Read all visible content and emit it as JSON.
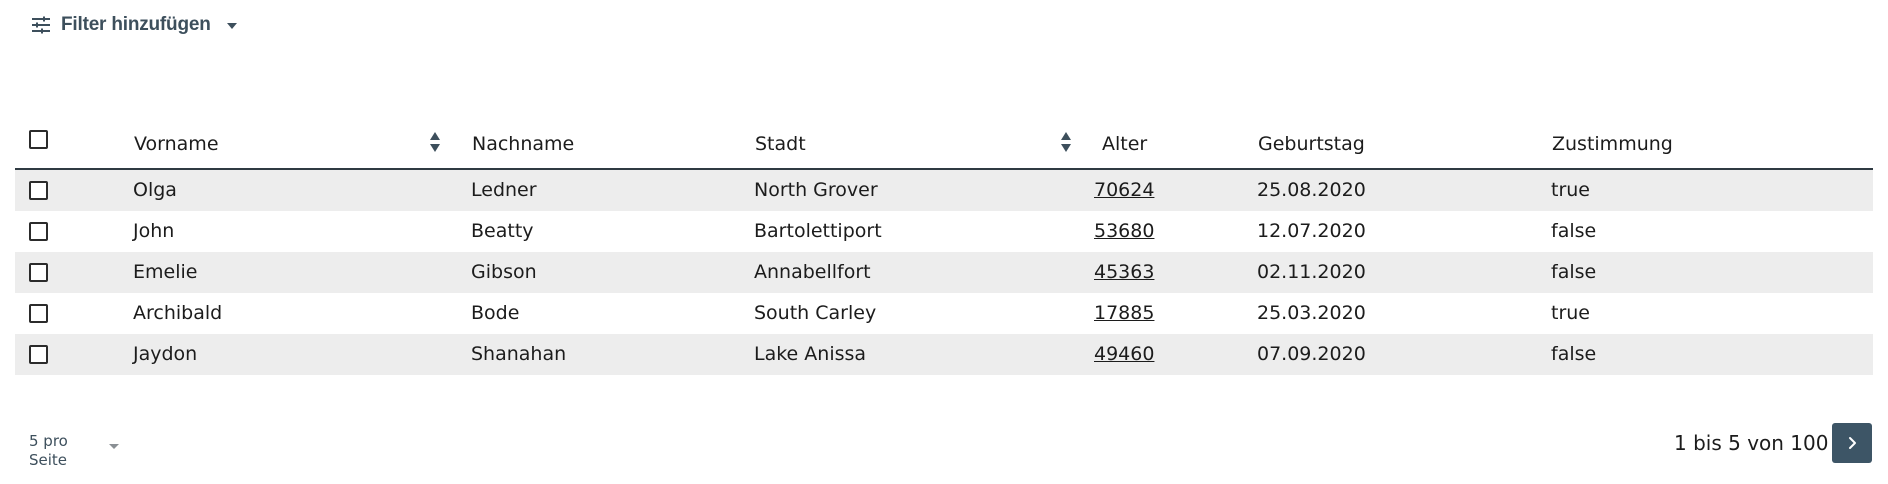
{
  "filter": {
    "label": "Filter hinzufügen",
    "icon": "sliders-icon"
  },
  "table": {
    "columns": [
      {
        "label": "Vorname",
        "sortable": true
      },
      {
        "label": "Nachname",
        "sortable": false
      },
      {
        "label": "Stadt",
        "sortable": true
      },
      {
        "label": "Alter",
        "sortable": false
      },
      {
        "label": "Geburtstag",
        "sortable": false
      },
      {
        "label": "Zustimmung",
        "sortable": false
      }
    ],
    "rows": [
      {
        "vorname": "Olga",
        "nachname": "Ledner",
        "stadt": "North Grover",
        "alter": "70624",
        "geburtstag": "25.08.2020",
        "zustimmung": "true"
      },
      {
        "vorname": "John",
        "nachname": "Beatty",
        "stadt": "Bartolettiport",
        "alter": "53680",
        "geburtstag": "12.07.2020",
        "zustimmung": "false"
      },
      {
        "vorname": "Emelie",
        "nachname": "Gibson",
        "stadt": "Annabellfort",
        "alter": "45363",
        "geburtstag": "02.11.2020",
        "zustimmung": "false"
      },
      {
        "vorname": "Archibald",
        "nachname": "Bode",
        "stadt": "South Carley",
        "alter": "17885",
        "geburtstag": "25.03.2020",
        "zustimmung": "true"
      },
      {
        "vorname": "Jaydon",
        "nachname": "Shanahan",
        "stadt": "Lake Anissa",
        "alter": "49460",
        "geburtstag": "07.09.2020",
        "zustimmung": "false"
      }
    ]
  },
  "pagination": {
    "per_page_label": "5 pro Seite",
    "range_text": "1 bis 5 von 100",
    "next_icon": "chevron-right-icon"
  },
  "colors": {
    "accent": "#3d5566",
    "row_shade": "#ededed",
    "header_rule": "#2f3a42"
  }
}
